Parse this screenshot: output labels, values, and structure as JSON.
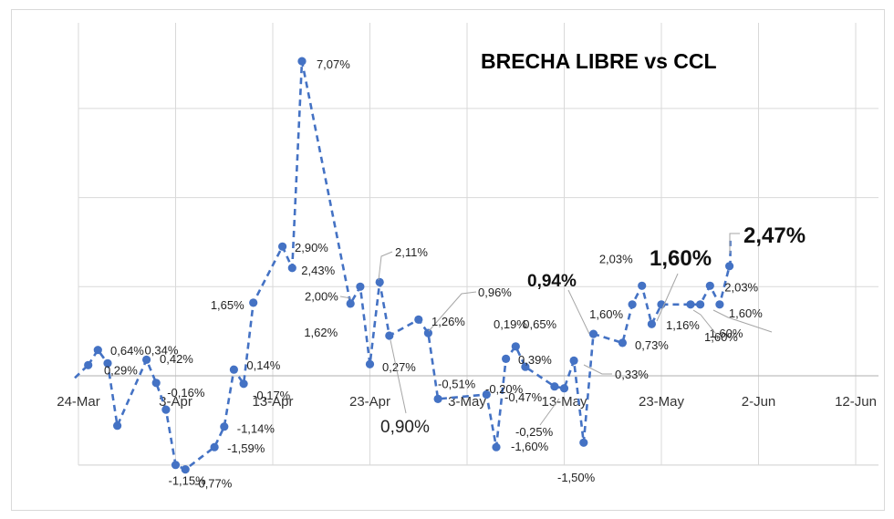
{
  "chart_data": {
    "type": "line",
    "title": "BRECHA LIBRE vs CCL",
    "xlabel": "",
    "ylabel": "",
    "x_tick_labels": [
      "24-Mar",
      "3-Apr",
      "13-Apr",
      "23-Apr",
      "3-May",
      "13-May",
      "23-May",
      "2-Jun",
      "12-Jun"
    ],
    "ylim": [
      -1.0,
      7.0
    ],
    "grid": true,
    "line_style": "dashed",
    "series_color": "#4472C4",
    "series": [
      {
        "points": [
          {
            "x": "25-Mar",
            "y": 0.12
          },
          {
            "x": "26-Mar",
            "y": 0.29
          },
          {
            "x": "27-Mar",
            "y": 0.14,
            "label": "0,29%"
          },
          {
            "x": "28-Mar",
            "y": -0.56
          },
          {
            "x": "31-Mar",
            "y": 0.18,
            "label": "0,34%"
          },
          {
            "x": "1-Apr",
            "y": -0.08,
            "label": "-0,16%"
          },
          {
            "x": "2-Apr",
            "y": -0.38
          },
          {
            "x": "3-Apr",
            "y": -1.0,
            "label": "-1,15%"
          },
          {
            "x": "4-Apr",
            "y": -1.05,
            "label": "-0,77%"
          },
          {
            "x": "7-Apr",
            "y": -0.8,
            "label": "-1,59%"
          },
          {
            "x": "8-Apr",
            "y": -0.57,
            "label": "-1,14%"
          },
          {
            "x": "9-Apr",
            "y": 0.07,
            "label": "0,14%"
          },
          {
            "x": "10-Apr",
            "y": -0.09,
            "label": "-0,17%"
          },
          {
            "x": "11-Apr",
            "y": 0.82,
            "label": "1,65%"
          },
          {
            "x": "14-Apr",
            "y": 1.45
          },
          {
            "x": "15-Apr",
            "y": 1.21,
            "label": "2,43%"
          },
          {
            "x": "16-Apr",
            "y": 3.53,
            "label": "7,07%"
          },
          {
            "x": "21-Apr",
            "y": 0.81,
            "label": "1,62%"
          },
          {
            "x": "22-Apr",
            "y": 1.0,
            "label": "2,00%"
          },
          {
            "x": "23-Apr",
            "y": 0.13
          },
          {
            "x": "24-Apr",
            "y": 1.05
          },
          {
            "x": "25-Apr",
            "y": 0.45
          },
          {
            "x": "28-Apr",
            "y": 0.63
          },
          {
            "x": "29-Apr",
            "y": 0.48
          },
          {
            "x": "30-Apr",
            "y": -0.26,
            "label": "-0,51%"
          },
          {
            "x": "5-May",
            "y": -0.21
          },
          {
            "x": "6-May",
            "y": -0.8
          },
          {
            "x": "7-May",
            "y": 0.19
          },
          {
            "x": "8-May",
            "y": 0.33,
            "label": "0,65%"
          },
          {
            "x": "9-May",
            "y": 0.1
          },
          {
            "x": "12-May",
            "y": -0.12
          },
          {
            "x": "13-May",
            "y": -0.14
          },
          {
            "x": "14-May",
            "y": 0.17
          },
          {
            "x": "15-May",
            "y": -0.75
          },
          {
            "x": "16-May",
            "y": 0.47
          },
          {
            "x": "19-May",
            "y": 0.37
          },
          {
            "x": "20-May",
            "y": 0.8,
            "label": "1,60%"
          },
          {
            "x": "21-May",
            "y": 1.01,
            "label": "2,03%"
          },
          {
            "x": "22-May",
            "y": 0.58
          },
          {
            "x": "23-May",
            "y": 0.8
          },
          {
            "x": "26-May",
            "y": 0.8
          },
          {
            "x": "27-May",
            "y": 0.8,
            "label": "1,60%"
          },
          {
            "x": "28-May",
            "y": 1.01,
            "label": "2,03%"
          },
          {
            "x": "29-May",
            "y": 0.8,
            "label": "1,60%"
          },
          {
            "x": "30-May",
            "y": 1.23
          }
        ]
      }
    ],
    "callouts": [
      {
        "text": "0,64%",
        "style": "normal"
      },
      {
        "text": "0,42%",
        "style": "normal"
      },
      {
        "text": "2,90%",
        "style": "normal"
      },
      {
        "text": "2,11%",
        "style": "normal"
      },
      {
        "text": "0,27%",
        "style": "normal"
      },
      {
        "text": "0,90%",
        "style": "large"
      },
      {
        "text": "0,96%",
        "style": "normal"
      },
      {
        "text": "1,26%",
        "style": "normal"
      },
      {
        "text": "0,19%",
        "style": "normal"
      },
      {
        "text": "0,39%",
        "style": "normal"
      },
      {
        "text": "-0,20%",
        "style": "normal"
      },
      {
        "text": "-0,47%",
        "style": "normal"
      },
      {
        "text": "-0,25%",
        "style": "normal"
      },
      {
        "text": "-1,60%",
        "style": "normal"
      },
      {
        "text": "-1,50%",
        "style": "normal"
      },
      {
        "text": "0,33%",
        "style": "normal"
      },
      {
        "text": "0,94%",
        "style": "bold"
      },
      {
        "text": "0,73%",
        "style": "normal"
      },
      {
        "text": "1,60%",
        "style": "bold-large"
      },
      {
        "text": "1,16%",
        "style": "normal"
      },
      {
        "text": "1,60%",
        "style": "normal"
      },
      {
        "text": "2,47%",
        "style": "bold-large"
      }
    ]
  }
}
